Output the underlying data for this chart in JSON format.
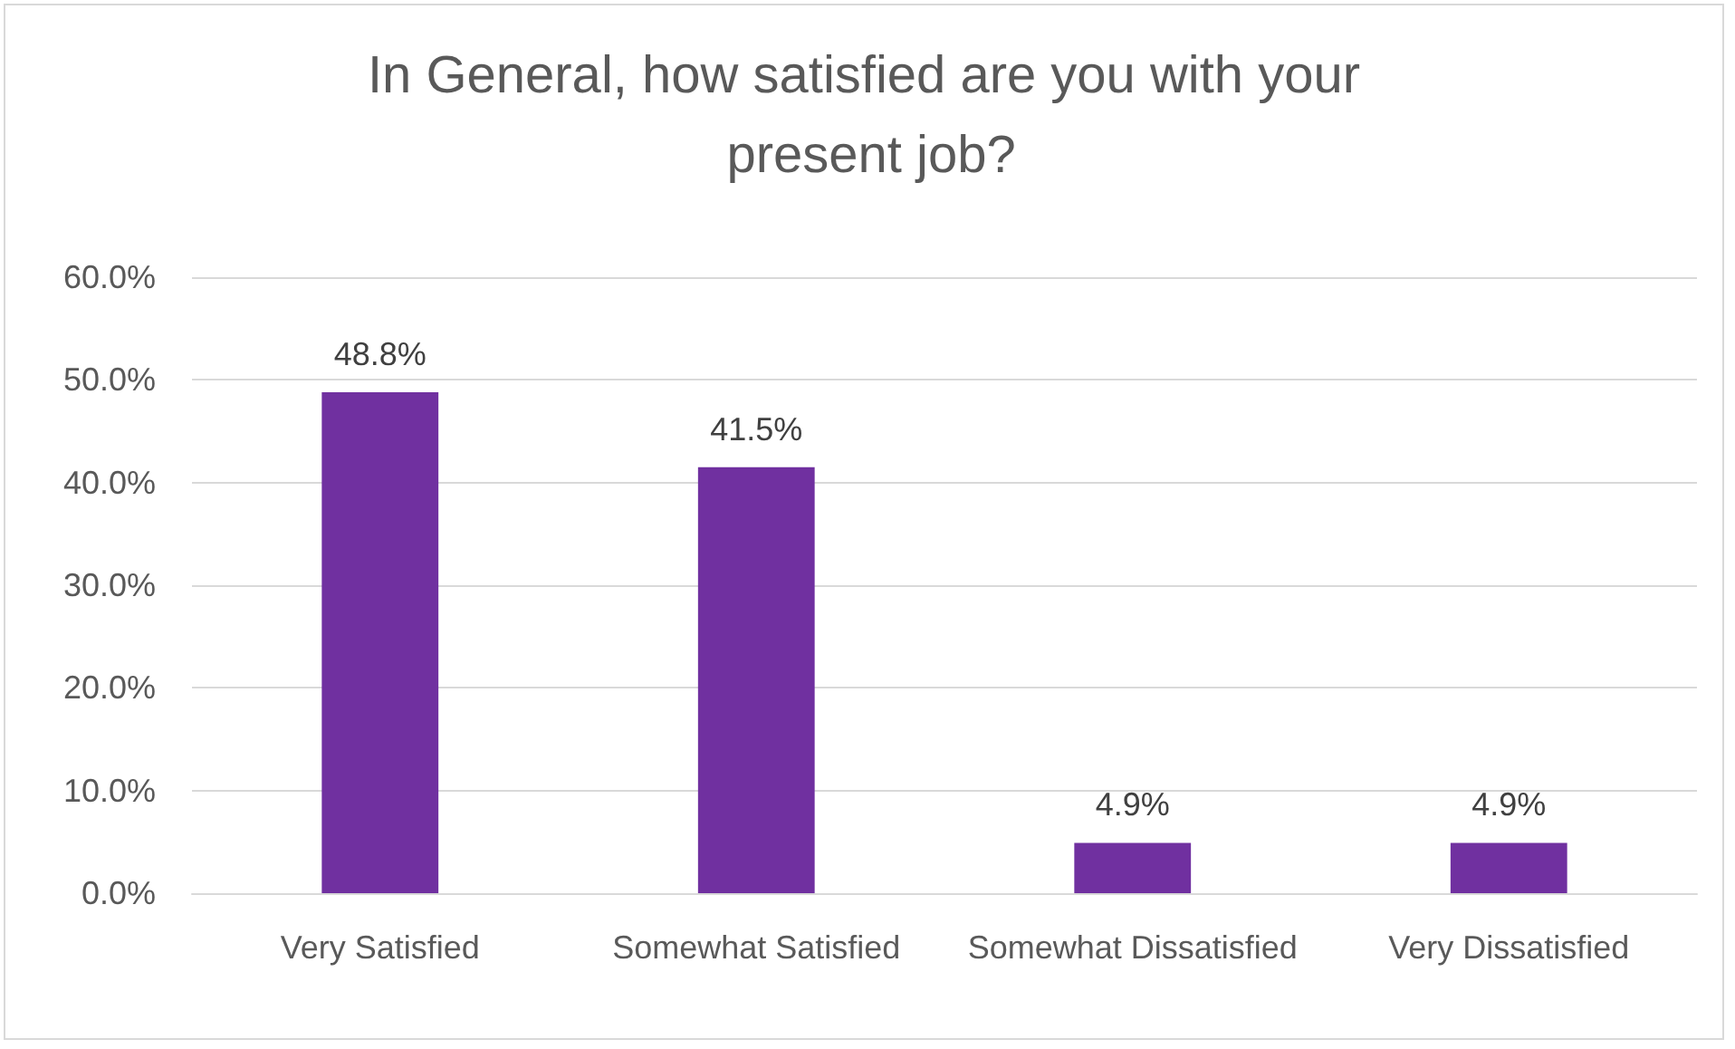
{
  "chart_data": {
    "type": "bar",
    "title": "In General, how satisfied are you with your present job?",
    "categories": [
      "Very Satisfied",
      "Somewhat Satisfied",
      "Somewhat Dissatisfied",
      "Very Dissatisfied"
    ],
    "values": [
      48.8,
      41.5,
      4.9,
      4.9
    ],
    "color": "#7030a0",
    "value_labels": [
      "48.8%",
      "41.5%",
      "4.9%",
      "4.9%"
    ],
    "ylim": [
      0,
      60
    ],
    "yticks": [
      {
        "value": 0,
        "label": "0.0%"
      },
      {
        "value": 10,
        "label": "10.0%"
      },
      {
        "value": 20,
        "label": "20.0%"
      },
      {
        "value": 30,
        "label": "30.0%"
      },
      {
        "value": 40,
        "label": "40.0%"
      },
      {
        "value": 50,
        "label": "50.0%"
      },
      {
        "value": 60,
        "label": "60.0%"
      }
    ],
    "grid": "y"
  }
}
